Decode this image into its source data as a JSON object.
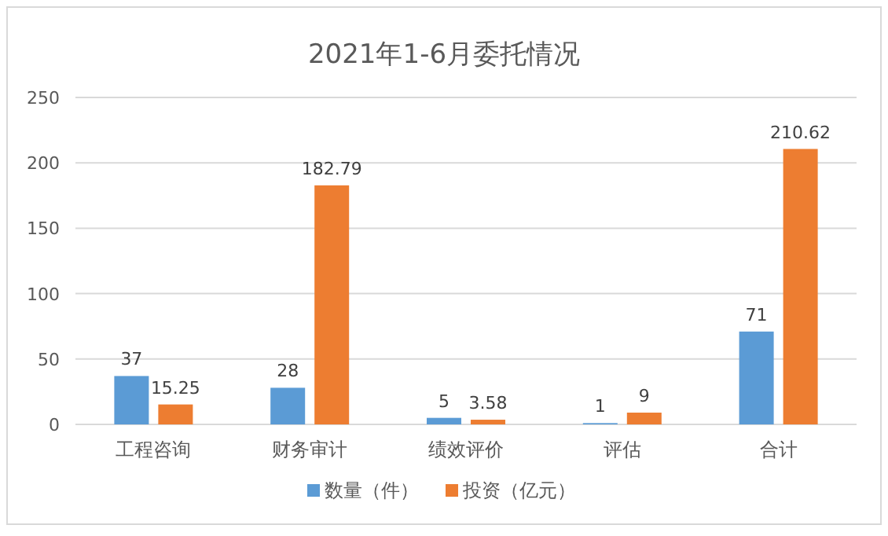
{
  "chart_data": {
    "type": "bar",
    "title": "2021年1-6月委托情况",
    "categories": [
      "工程咨询",
      "财务审计",
      "绩效评价",
      "评估",
      "合计"
    ],
    "series": [
      {
        "name": "数量（件）",
        "color": "#5b9bd5",
        "values": [
          37,
          28,
          5,
          1,
          71
        ]
      },
      {
        "name": "投资（亿元）",
        "color": "#ed7d31",
        "values": [
          15.25,
          182.79,
          3.58,
          9,
          210.62
        ]
      }
    ],
    "ylim": [
      0,
      250
    ],
    "yticks": [
      0,
      50,
      100,
      150,
      200,
      250
    ],
    "grid": "y",
    "legend": "bottom",
    "data_labels": true
  }
}
